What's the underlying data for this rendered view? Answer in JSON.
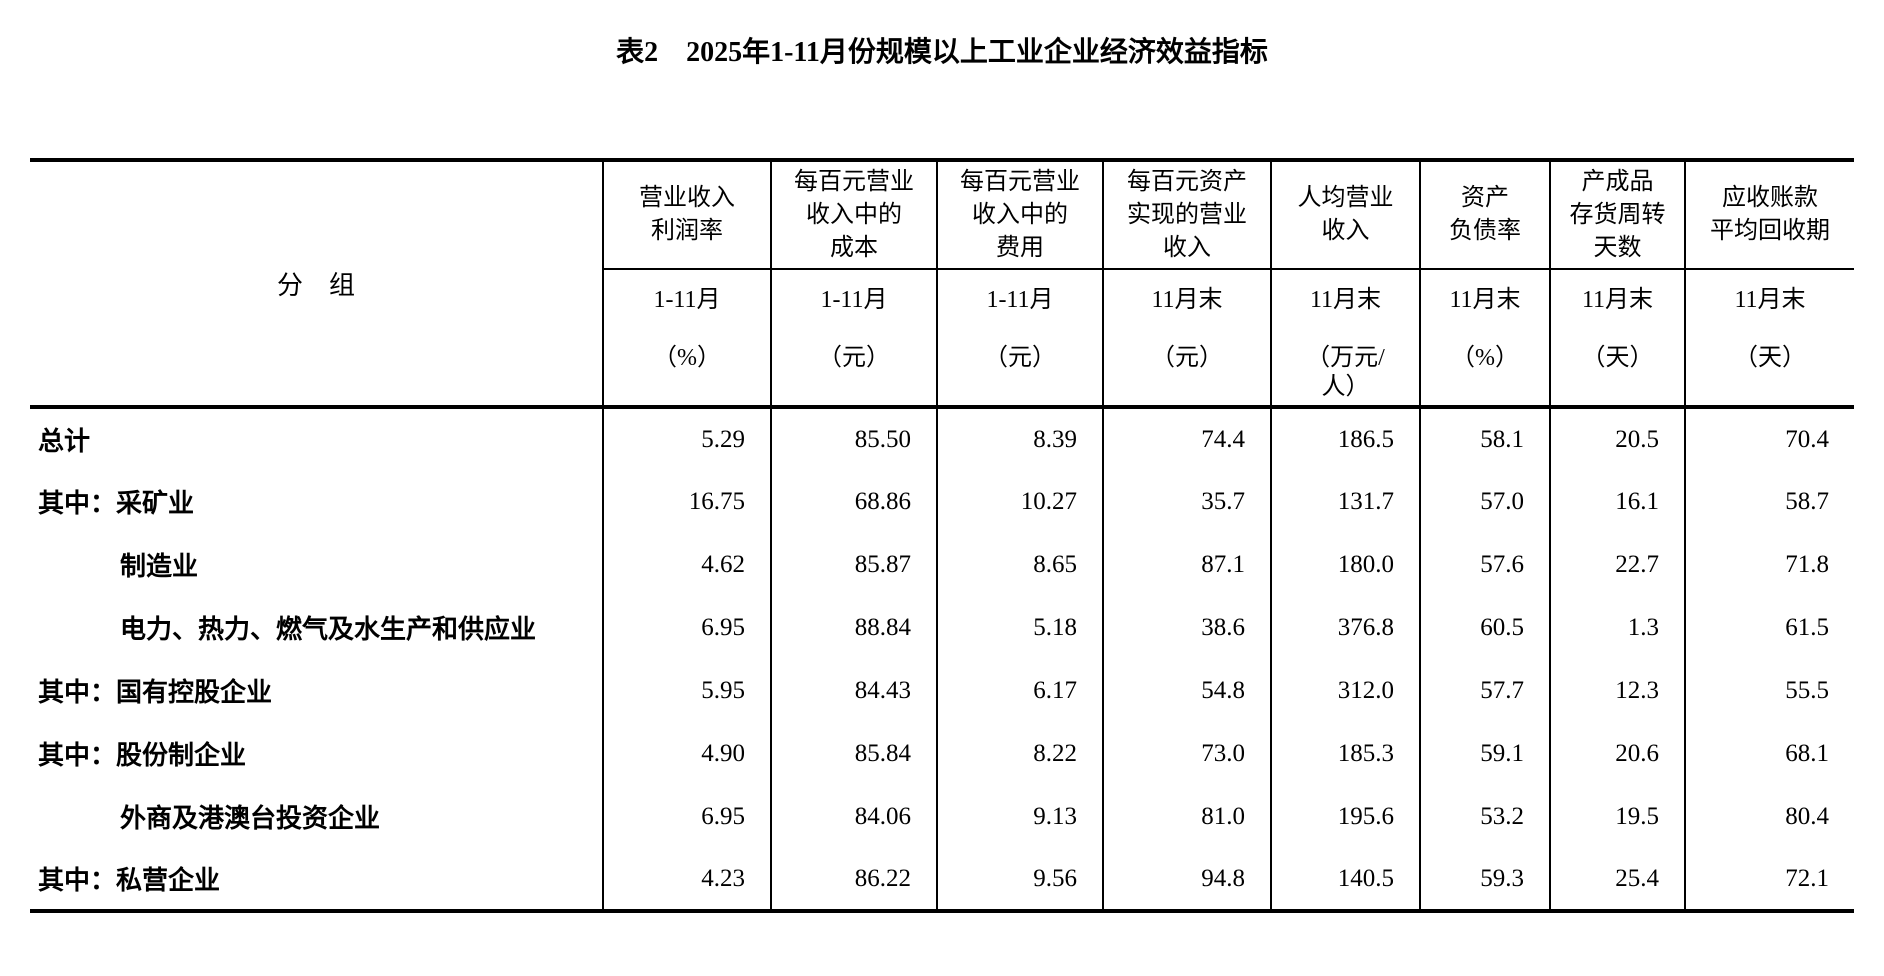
{
  "title": "表2　2025年1-11月份规模以上工业企业经济效益指标",
  "table": {
    "group_header": "分　组",
    "columns": [
      {
        "name_lines": [
          "营业收入",
          "利润率"
        ],
        "period": "1-11月",
        "unit_lines": [
          "（%）"
        ]
      },
      {
        "name_lines": [
          "每百元营业",
          "收入中的",
          "成本"
        ],
        "period": "1-11月",
        "unit_lines": [
          "（元）"
        ]
      },
      {
        "name_lines": [
          "每百元营业",
          "收入中的",
          "费用"
        ],
        "period": "1-11月",
        "unit_lines": [
          "（元）"
        ]
      },
      {
        "name_lines": [
          "每百元资产",
          "实现的营业",
          "收入"
        ],
        "period": "11月末",
        "unit_lines": [
          "（元）"
        ]
      },
      {
        "name_lines": [
          "人均营业",
          "收入"
        ],
        "period": "11月末",
        "unit_lines": [
          "（万元/",
          "人）"
        ]
      },
      {
        "name_lines": [
          "资产",
          "负债率"
        ],
        "period": "11月末",
        "unit_lines": [
          "（%）"
        ]
      },
      {
        "name_lines": [
          "产成品",
          "存货周转",
          "天数"
        ],
        "period": "11月末",
        "unit_lines": [
          "（天）"
        ]
      },
      {
        "name_lines": [
          "应收账款",
          "平均回收期"
        ],
        "period": "11月末",
        "unit_lines": [
          "（天）"
        ]
      }
    ],
    "rows": [
      {
        "label": "总计",
        "indent": false,
        "values": [
          "5.29",
          "85.50",
          "8.39",
          "74.4",
          "186.5",
          "58.1",
          "20.5",
          "70.4"
        ]
      },
      {
        "label": "其中：采矿业",
        "indent": false,
        "values": [
          "16.75",
          "68.86",
          "10.27",
          "35.7",
          "131.7",
          "57.0",
          "16.1",
          "58.7"
        ]
      },
      {
        "label": "制造业",
        "indent": true,
        "values": [
          "4.62",
          "85.87",
          "8.65",
          "87.1",
          "180.0",
          "57.6",
          "22.7",
          "71.8"
        ]
      },
      {
        "label": "电力、热力、燃气及水生产和供应业",
        "indent": true,
        "values": [
          "6.95",
          "88.84",
          "5.18",
          "38.6",
          "376.8",
          "60.5",
          "1.3",
          "61.5"
        ]
      },
      {
        "label": "其中：国有控股企业",
        "indent": false,
        "values": [
          "5.95",
          "84.43",
          "6.17",
          "54.8",
          "312.0",
          "57.7",
          "12.3",
          "55.5"
        ]
      },
      {
        "label": "其中：股份制企业",
        "indent": false,
        "values": [
          "4.90",
          "85.84",
          "8.22",
          "73.0",
          "185.3",
          "59.1",
          "20.6",
          "68.1"
        ]
      },
      {
        "label": "外商及港澳台投资企业",
        "indent": true,
        "values": [
          "6.95",
          "84.06",
          "9.13",
          "81.0",
          "195.6",
          "53.2",
          "19.5",
          "80.4"
        ]
      },
      {
        "label": "其中：私营企业",
        "indent": false,
        "values": [
          "4.23",
          "86.22",
          "9.56",
          "94.8",
          "140.5",
          "59.3",
          "25.4",
          "72.1"
        ]
      }
    ]
  }
}
